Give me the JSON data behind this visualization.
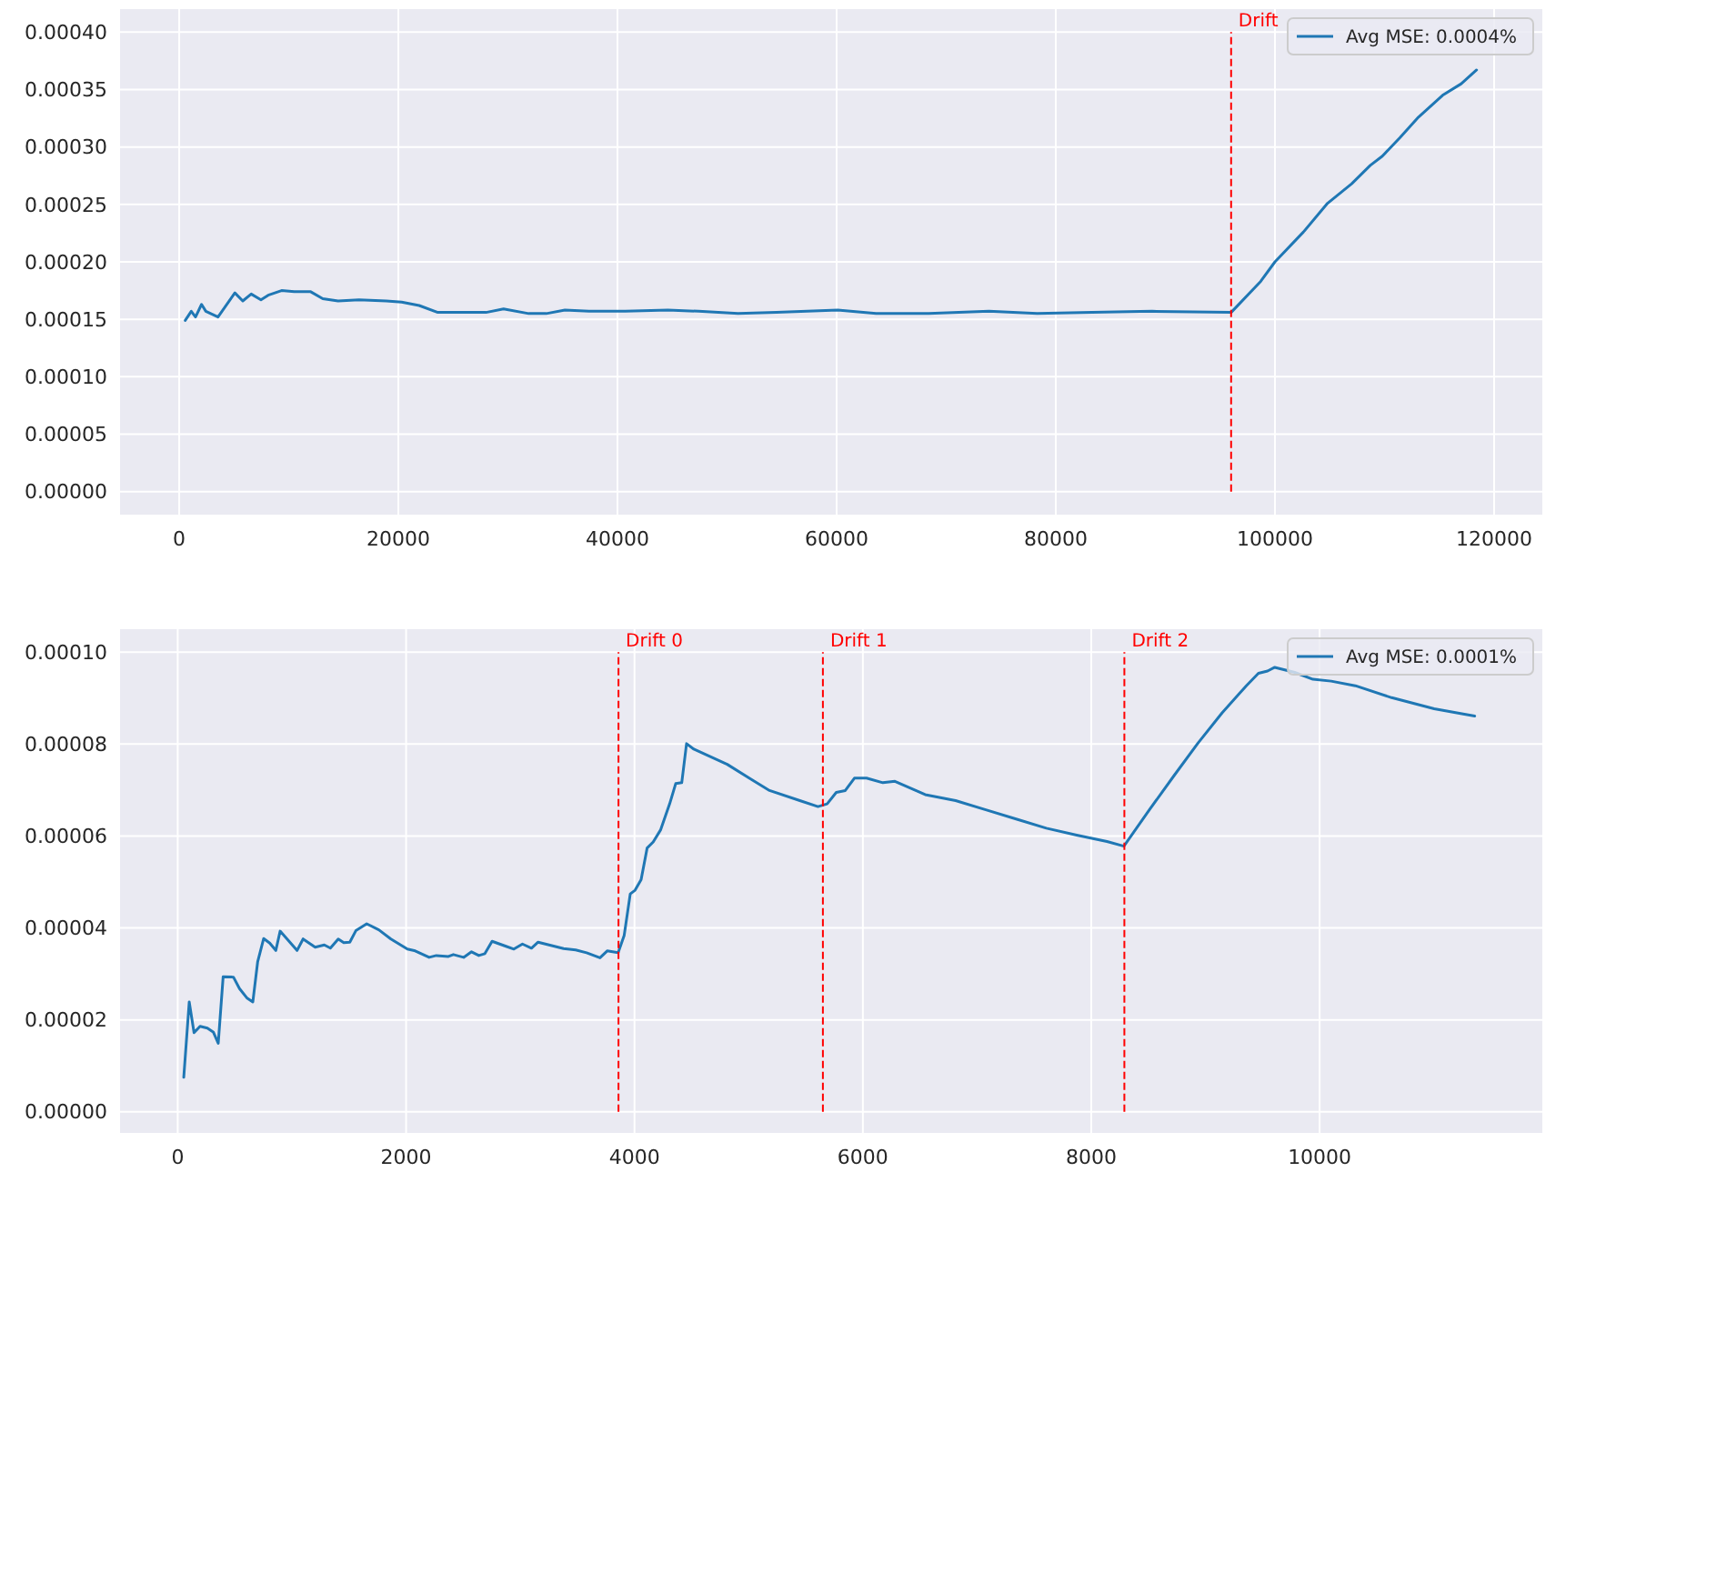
{
  "chart_data": [
    {
      "type": "line",
      "xlim": [
        -5400,
        124400
      ],
      "ylim": [
        -2e-05,
        0.00042
      ],
      "xticks": [
        0,
        20000,
        40000,
        60000,
        80000,
        100000,
        120000
      ],
      "yticks": [
        {
          "value": 0,
          "label": "0.00000"
        },
        {
          "value": 5e-05,
          "label": "0.00005"
        },
        {
          "value": 0.0001,
          "label": "0.00010"
        },
        {
          "value": 0.00015,
          "label": "0.00015"
        },
        {
          "value": 0.0002,
          "label": "0.00020"
        },
        {
          "value": 0.00025,
          "label": "0.00025"
        },
        {
          "value": 0.0003,
          "label": "0.00030"
        },
        {
          "value": 0.00035,
          "label": "0.00035"
        },
        {
          "value": 0.0004,
          "label": "0.00040"
        }
      ],
      "grid": true,
      "legend": "top right",
      "ref_lines": [
        {
          "axis": "x",
          "value": 96000,
          "label": "Drift",
          "color": "#ff0000",
          "line_style": "dashed"
        }
      ],
      "series": [
        {
          "name": "Avg MSE: 0.0004%",
          "color": "#1f77b4",
          "x": [
            550,
            1100,
            1490,
            2040,
            2430,
            3540,
            5080,
            5800,
            6570,
            7460,
            8120,
            9340,
            10500,
            12000,
            13100,
            14500,
            16400,
            18900,
            20300,
            21900,
            23600,
            26400,
            28000,
            29600,
            31900,
            33500,
            35200,
            37400,
            40700,
            44600,
            47400,
            51000,
            54500,
            60100,
            63600,
            68400,
            73900,
            78300,
            83300,
            88800,
            96000,
            98700,
            100000,
            102600,
            104800,
            107000,
            108700,
            109800,
            111400,
            113100,
            115300,
            117000,
            118400
          ],
          "values": [
            0.000149,
            0.000157,
            0.000152,
            0.000163,
            0.000157,
            0.000152,
            0.000173,
            0.000166,
            0.000172,
            0.000167,
            0.000171,
            0.000175,
            0.000174,
            0.000174,
            0.000168,
            0.000166,
            0.000167,
            0.000166,
            0.000165,
            0.000162,
            0.000156,
            0.000156,
            0.000156,
            0.000159,
            0.000155,
            0.000155,
            0.000158,
            0.000157,
            0.000157,
            0.000158,
            0.000157,
            0.000155,
            0.000156,
            0.000158,
            0.000155,
            0.000155,
            0.000157,
            0.000155,
            0.000156,
            0.000157,
            0.000156,
            0.000183,
            0.0002,
            0.000226,
            0.000251,
            0.000268,
            0.000284,
            0.000292,
            0.000308,
            0.000326,
            0.000345,
            0.000355,
            0.000367
          ]
        }
      ]
    },
    {
      "type": "line",
      "xlim": [
        -505,
        11950
      ],
      "ylim": [
        -4.6e-06,
        0.000105
      ],
      "xticks": [
        0,
        2000,
        4000,
        6000,
        8000,
        10000
      ],
      "yticks": [
        {
          "value": 0,
          "label": "0.00000"
        },
        {
          "value": 2e-05,
          "label": "0.00002"
        },
        {
          "value": 4e-05,
          "label": "0.00004"
        },
        {
          "value": 6e-05,
          "label": "0.00006"
        },
        {
          "value": 8e-05,
          "label": "0.00008"
        },
        {
          "value": 0.0001,
          "label": "0.00010"
        }
      ],
      "grid": true,
      "legend": "top right",
      "ref_lines": [
        {
          "axis": "x",
          "value": 3860,
          "label": "Drift 0",
          "color": "#ff0000",
          "line_style": "dashed"
        },
        {
          "axis": "x",
          "value": 5650,
          "label": "Drift 1",
          "color": "#ff0000",
          "line_style": "dashed"
        },
        {
          "axis": "x",
          "value": 8290,
          "label": "Drift 2",
          "color": "#ff0000",
          "line_style": "dashed"
        }
      ],
      "series": [
        {
          "name": "Avg MSE: 0.0001%",
          "color": "#1f77b4",
          "x": [
            53,
            101,
            143,
            196,
            260,
            313,
            355,
            398,
            488,
            541,
            605,
            658,
            700,
            753,
            806,
            859,
            897,
            1045,
            1098,
            1204,
            1284,
            1337,
            1406,
            1454,
            1507,
            1560,
            1655,
            1761,
            1867,
            2011,
            2080,
            2202,
            2265,
            2371,
            2414,
            2504,
            2573,
            2637,
            2690,
            2753,
            2875,
            2944,
            3019,
            3098,
            3156,
            3379,
            3485,
            3581,
            3698,
            3761,
            3857,
            3910,
            3963,
            4005,
            4058,
            4111,
            4164,
            4228,
            4308,
            4361,
            4414,
            4456,
            4520,
            4812,
            5024,
            5183,
            5448,
            5607,
            5687,
            5767,
            5846,
            5926,
            6032,
            6175,
            6281,
            6546,
            6812,
            7077,
            7342,
            7607,
            7873,
            8138,
            8286,
            8509,
            8721,
            8934,
            9146,
            9358,
            9464,
            9544,
            9607,
            9782,
            9941,
            10101,
            10313,
            10631,
            11003,
            11268,
            11358
          ],
          "values": [
            7.5e-06,
            2.39e-05,
            1.72e-05,
            1.86e-05,
            1.82e-05,
            1.73e-05,
            1.49e-05,
            2.94e-05,
            2.93e-05,
            2.68e-05,
            2.48e-05,
            2.39e-05,
            3.26e-05,
            3.77e-05,
            3.67e-05,
            3.51e-05,
            3.93e-05,
            3.51e-05,
            3.76e-05,
            3.58e-05,
            3.63e-05,
            3.56e-05,
            3.76e-05,
            3.68e-05,
            3.69e-05,
            3.94e-05,
            4.09e-05,
            3.96e-05,
            3.76e-05,
            3.54e-05,
            3.5e-05,
            3.36e-05,
            3.4e-05,
            3.38e-05,
            3.42e-05,
            3.36e-05,
            3.48e-05,
            3.4e-05,
            3.44e-05,
            3.71e-05,
            3.6e-05,
            3.54e-05,
            3.65e-05,
            3.56e-05,
            3.69e-05,
            3.55e-05,
            3.52e-05,
            3.46e-05,
            3.35e-05,
            3.5e-05,
            3.46e-05,
            3.84e-05,
            4.74e-05,
            4.82e-05,
            5.05e-05,
            5.74e-05,
            5.87e-05,
            6.13e-05,
            6.7e-05,
            7.14e-05,
            7.16e-05,
            8.01e-05,
            7.89e-05,
            7.56e-05,
            7.23e-05,
            6.99e-05,
            6.77e-05,
            6.64e-05,
            6.7e-05,
            6.95e-05,
            6.99e-05,
            7.26e-05,
            7.26e-05,
            7.16e-05,
            7.19e-05,
            6.9e-05,
            6.77e-05,
            6.57e-05,
            6.37e-05,
            6.17e-05,
            6.02e-05,
            5.88e-05,
            5.78e-05,
            6.57e-05,
            7.3e-05,
            8.02e-05,
            8.68e-05,
            9.27e-05,
            9.54e-05,
            9.59e-05,
            9.67e-05,
            9.56e-05,
            9.41e-05,
            9.37e-05,
            9.27e-05,
            9.01e-05,
            8.77e-05,
            8.65e-05,
            8.61e-05
          ]
        }
      ]
    }
  ]
}
